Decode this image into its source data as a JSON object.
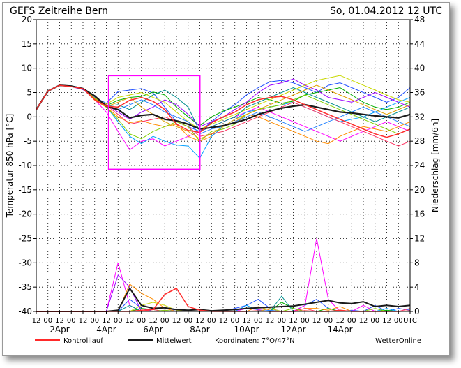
{
  "header": {
    "title": "GEFS  Zeitreihe  Bern",
    "run": "So,  01.04.2012  12  UTC"
  },
  "footer": {
    "control_label": "Kontrolllauf",
    "mean_label": "Mittelwert",
    "coords": "Koordinaten:  7°O/47°N",
    "brand": "WetterOnline"
  },
  "colors": {
    "control": "#ff2a2a",
    "mean": "#1a1a1a",
    "highlight_box": "#ff00ff",
    "members": [
      "#1f4fff",
      "#ff00ff",
      "#00b000",
      "#ff8c00",
      "#9b00ff",
      "#00a0ff",
      "#c8d800",
      "#ff3060",
      "#008f8f",
      "#7fd000",
      "#2080ff",
      "#e0a000",
      "#a000c0",
      "#00c8a0",
      "#ff6000",
      "#4040c0",
      "#90c000",
      "#0070c0",
      "#c06000",
      "#40e040"
    ]
  },
  "chart_data": {
    "type": "line",
    "title": "GEFS Zeitreihe Bern",
    "left_axis": {
      "label": "Temperatur 850 hPa [°C]",
      "ylim": [
        -40,
        20
      ],
      "ticks": [
        20,
        15,
        10,
        5,
        0,
        -5,
        -10,
        -15,
        -20,
        -25,
        -30,
        -35,
        -40
      ]
    },
    "right_axis": {
      "label": "Niederschlag [mm/6h]",
      "ylim": [
        0,
        48
      ],
      "ticks": [
        48,
        44,
        40,
        36,
        32,
        28,
        24,
        20,
        16,
        12,
        8,
        4,
        0
      ]
    },
    "x_axis": {
      "hour_ticks": [
        "12",
        "00",
        "12",
        "00",
        "12",
        "00",
        "12",
        "00",
        "12",
        "00",
        "12",
        "00",
        "12",
        "00",
        "12",
        "00",
        "12",
        "00",
        "12",
        "00",
        "12",
        "00",
        "12",
        "00",
        "12",
        "00",
        "12",
        "00",
        "12",
        "00",
        "12",
        "00",
        "UTC"
      ],
      "date_labels": [
        {
          "label": "2Apr",
          "index": 2
        },
        {
          "label": "4Apr",
          "index": 6
        },
        {
          "label": "6Apr",
          "index": 10
        },
        {
          "label": "8Apr",
          "index": 14
        },
        {
          "label": "10Apr",
          "index": 18
        },
        {
          "label": "12Apr",
          "index": 22
        },
        {
          "label": "14Apr",
          "index": 26
        }
      ]
    },
    "grid": "dotted",
    "highlight_box": {
      "x_from": 6.2,
      "x_to": 14,
      "y_from": -10.8,
      "y_to": 8.5
    },
    "control_temperature": [
      1.5,
      5.3,
      6.5,
      6.2,
      5.8,
      3.5,
      2.2,
      2.0,
      3.4,
      4.0,
      3.2,
      1.5,
      -1.5,
      -2.8,
      -3.2,
      -1.2,
      0.0,
      1.0,
      2.5,
      3.5,
      4.0,
      4.2,
      3.5,
      2.5,
      1.5,
      0.5,
      -0.5,
      -1.5,
      -2.5,
      -3.5,
      -4.2,
      -3.5,
      -2.5
    ],
    "mean_temperature": [
      1.5,
      5.3,
      6.5,
      6.3,
      5.8,
      4.3,
      2.2,
      1.5,
      -0.2,
      0.3,
      0.5,
      -0.5,
      -0.8,
      -1.5,
      -2.5,
      -2.2,
      -1.8,
      -1.2,
      -0.5,
      0.5,
      1.2,
      1.8,
      2.2,
      2.5,
      2.0,
      1.5,
      1.0,
      0.8,
      0.5,
      0.2,
      0.0,
      -0.2,
      0.5
    ],
    "control_precip": [
      0,
      0,
      0,
      0,
      0,
      0,
      0,
      0,
      0,
      0.2,
      0.3,
      2.8,
      3.8,
      0.8,
      0.2,
      0,
      0,
      0,
      0,
      0.1,
      0,
      0,
      0,
      0.1,
      0,
      0,
      0.2,
      0,
      0,
      0,
      0,
      0,
      0.1
    ],
    "mean_precip": [
      0,
      0,
      0,
      0,
      0,
      0,
      0,
      0.2,
      3.8,
      1.0,
      0.5,
      0.6,
      0.3,
      0.2,
      0.3,
      0.1,
      0.2,
      0.3,
      0.5,
      0.6,
      0.7,
      0.8,
      0.9,
      1.2,
      1.5,
      1.8,
      1.4,
      1.3,
      1.6,
      0.8,
      1.0,
      0.8,
      1.0
    ],
    "members": [
      {
        "temperature": [
          1.5,
          5.3,
          6.5,
          6.3,
          5.9,
          4.0,
          2.8,
          5.2,
          5.5,
          5.8,
          4.9,
          2.0,
          -1.0,
          -2.0,
          -3.0,
          -1.0,
          1.0,
          2.5,
          4.5,
          6.0,
          7.2,
          7.5,
          7.0,
          6.0,
          5.0,
          6.5,
          7.0,
          6.0,
          5.0,
          4.0,
          3.0,
          4.0,
          6.0
        ],
        "precip": [
          0,
          0,
          0,
          0,
          0,
          0,
          0,
          0,
          2.0,
          0.5,
          0,
          0,
          0.3,
          0,
          0,
          0,
          0,
          0.5,
          1.0,
          2.0,
          0.5,
          0,
          0,
          1.0,
          2.0,
          0.5,
          0,
          0.2,
          0,
          1.0,
          0,
          0.5,
          0.2
        ]
      },
      {
        "temperature": [
          1.5,
          5.3,
          6.5,
          6.3,
          5.7,
          3.5,
          1.0,
          -3.0,
          -6.8,
          -5.0,
          -4.5,
          -6.0,
          -5.0,
          -4.0,
          -3.0,
          -2.0,
          -1.0,
          0.0,
          1.0,
          2.0,
          1.0,
          0.0,
          -1.0,
          -2.0,
          -3.0,
          -4.0,
          -5.0,
          -4.0,
          -3.0,
          -2.0,
          -1.0,
          -2.0,
          -3.0
        ],
        "precip": [
          0,
          0,
          0,
          0,
          0,
          0,
          0,
          8.0,
          1.0,
          0,
          0,
          0,
          0,
          0,
          0,
          0,
          0,
          0,
          0.5,
          0.3,
          0,
          0,
          0,
          1.0,
          12.0,
          2.0,
          0,
          0,
          1.0,
          0,
          0,
          0,
          0
        ]
      },
      {
        "temperature": [
          1.5,
          5.3,
          6.5,
          6.4,
          5.8,
          3.7,
          2.3,
          3.4,
          4.0,
          4.2,
          5.1,
          4.5,
          2.0,
          0.0,
          -1.8,
          0.0,
          1.2,
          2.0,
          2.9,
          4.0,
          3.5,
          2.8,
          3.2,
          4.5,
          5.0,
          5.5,
          6.0,
          4.5,
          3.0,
          2.0,
          1.5,
          2.0,
          3.0
        ],
        "precip": [
          0,
          0,
          0,
          0,
          0,
          0,
          0,
          0,
          0,
          0.5,
          0.3,
          0,
          0,
          0,
          0,
          0,
          0,
          0,
          0,
          0,
          0,
          1.5,
          0.5,
          0,
          0,
          0.5,
          0,
          0,
          0,
          0,
          0.2,
          0,
          0
        ]
      },
      {
        "temperature": [
          1.5,
          5.3,
          6.5,
          6.3,
          5.9,
          3.4,
          2.0,
          0.0,
          -1.2,
          -0.8,
          -1.5,
          -2.0,
          -1.5,
          -4.0,
          -5.0,
          -4.0,
          -2.0,
          -1.0,
          0.5,
          0.0,
          -1.0,
          -2.0,
          -3.0,
          -4.0,
          -5.0,
          -5.5,
          -4.0,
          -3.0,
          -2.0,
          -2.5,
          -3.0,
          -2.0,
          -1.0
        ],
        "precip": [
          0,
          0,
          0,
          0,
          0,
          0,
          0,
          0,
          4.5,
          3.0,
          2.0,
          0.5,
          0,
          0,
          0,
          0,
          0,
          0,
          0,
          0.8,
          0.2,
          0,
          0,
          0.5,
          0.5,
          0.2,
          0.8,
          0,
          0,
          0,
          0,
          0,
          0
        ]
      },
      {
        "temperature": [
          1.5,
          5.3,
          6.5,
          6.2,
          5.6,
          3.8,
          2.5,
          1.0,
          -0.5,
          1.0,
          2.0,
          3.5,
          2.5,
          0.5,
          -2.0,
          -1.0,
          0.0,
          1.5,
          3.0,
          5.0,
          6.5,
          7.0,
          7.8,
          6.5,
          5.5,
          4.0,
          3.5,
          3.0,
          4.0,
          5.0,
          4.0,
          3.0,
          2.0
        ],
        "precip": [
          0,
          0,
          0,
          0,
          0,
          0,
          0,
          6.0,
          4.0,
          0,
          0,
          0.2,
          0,
          0,
          0,
          0,
          0,
          0,
          0,
          0,
          0.5,
          0,
          0,
          0,
          0,
          0,
          0.2,
          0,
          0,
          0,
          0,
          0,
          0
        ]
      },
      {
        "temperature": [
          1.5,
          5.3,
          6.5,
          6.3,
          5.8,
          3.6,
          2.1,
          -1.0,
          -4.0,
          -5.5,
          -4.0,
          -5.0,
          -5.8,
          -6.0,
          -8.5,
          -4.0,
          -2.0,
          -0.5,
          1.0,
          1.5,
          2.0,
          2.5,
          3.0,
          2.0,
          1.0,
          0.0,
          -1.0,
          -0.5,
          0.0,
          1.0,
          2.0,
          3.0,
          4.0
        ],
        "precip": [
          0,
          0,
          0,
          0,
          0,
          0,
          0,
          0,
          0,
          0,
          0,
          0,
          0,
          0,
          0,
          0,
          0,
          0,
          1.0,
          0.2,
          0,
          0,
          0,
          0,
          0,
          0,
          0,
          0,
          0,
          0,
          0.5,
          0,
          0
        ]
      },
      {
        "temperature": [
          1.5,
          5.3,
          6.5,
          6.4,
          5.9,
          3.9,
          2.6,
          4.0,
          4.5,
          5.0,
          4.0,
          3.0,
          1.0,
          -1.0,
          -2.5,
          -1.5,
          -0.5,
          0.5,
          1.5,
          2.5,
          3.5,
          4.5,
          5.5,
          6.5,
          7.5,
          8.0,
          8.5,
          7.5,
          6.5,
          5.5,
          4.5,
          3.5,
          3.0
        ],
        "precip": [
          0,
          0,
          0,
          0,
          0,
          0,
          0,
          0,
          0,
          1.0,
          1.5,
          1.0,
          0.2,
          0,
          0,
          0,
          0,
          0,
          0,
          0,
          0.5,
          0,
          0,
          0,
          0,
          0,
          0,
          0,
          0,
          0,
          0,
          0,
          0
        ]
      },
      {
        "temperature": [
          1.5,
          5.3,
          6.5,
          6.3,
          5.8,
          3.7,
          2.4,
          0.5,
          -1.5,
          -1.0,
          -0.5,
          0.0,
          -1.0,
          -2.0,
          -4.0,
          -3.5,
          -3.0,
          -2.0,
          -1.0,
          0.0,
          1.0,
          2.0,
          3.0,
          2.0,
          1.0,
          0.0,
          -1.0,
          -2.0,
          -3.0,
          -4.0,
          -5.0,
          -6.0,
          -5.0
        ],
        "precip": [
          0,
          0,
          0,
          0,
          0,
          0,
          0,
          0,
          0,
          0,
          0.3,
          0,
          0,
          0,
          0,
          0,
          0,
          0,
          0,
          0,
          0,
          0,
          0,
          0.5,
          0,
          0,
          0,
          0,
          0,
          0,
          0,
          0,
          0.5
        ]
      },
      {
        "temperature": [
          1.5,
          5.3,
          6.5,
          6.2,
          5.7,
          3.5,
          2.2,
          2.5,
          1.5,
          3.0,
          4.5,
          5.5,
          4.0,
          2.0,
          -3.0,
          -2.0,
          -1.0,
          0.0,
          2.0,
          3.0,
          4.0,
          5.0,
          6.0,
          5.0,
          4.0,
          3.0,
          2.0,
          1.0,
          0.0,
          -1.0,
          0.0,
          1.0,
          2.0
        ],
        "precip": [
          0,
          0,
          0,
          0,
          0,
          0,
          0,
          0,
          1.0,
          0,
          0,
          0,
          0,
          0,
          0,
          0,
          0,
          0,
          0,
          0,
          0,
          2.5,
          0,
          0,
          0,
          0,
          0,
          0,
          0,
          0,
          0,
          0,
          0
        ]
      },
      {
        "temperature": [
          1.5,
          5.3,
          6.5,
          6.3,
          5.8,
          3.8,
          2.0,
          -0.5,
          -3.5,
          -4.5,
          -3.0,
          -2.0,
          -1.0,
          -2.0,
          -5.0,
          -3.0,
          -2.5,
          -1.5,
          0.5,
          1.5,
          2.0,
          2.5,
          3.5,
          4.5,
          3.5,
          2.5,
          1.5,
          0.5,
          -0.5,
          -1.5,
          -2.5,
          -3.5,
          -2.5
        ],
        "precip": [
          0,
          0,
          0,
          0,
          0,
          0,
          0,
          0,
          0,
          0,
          0,
          0.2,
          0,
          0,
          0,
          0,
          0,
          0,
          0,
          0,
          0,
          0,
          0.5,
          0,
          0,
          0,
          0,
          0,
          0,
          0.5,
          0,
          0,
          0
        ]
      },
      {
        "temperature": [
          1.5,
          5.3,
          6.5,
          6.4,
          5.9,
          3.6,
          2.3,
          1.5,
          2.5,
          3.5,
          2.5,
          1.0,
          0.0,
          -1.0,
          -3.5,
          -2.5,
          -2.0,
          -1.0,
          0.0,
          1.0,
          0.0,
          -1.0,
          -2.0,
          -3.0,
          -2.0,
          -1.0,
          0.0,
          1.0,
          2.0,
          1.0,
          0.0,
          -1.0,
          -2.0
        ],
        "precip": [
          0,
          0,
          0,
          0,
          0,
          0,
          0,
          0,
          0,
          0,
          0,
          0,
          0,
          0,
          0,
          0,
          0,
          0,
          0,
          0,
          0.2,
          0,
          0,
          0,
          0,
          0,
          0,
          0,
          0,
          0,
          0,
          0,
          0
        ]
      },
      {
        "temperature": [
          1.5,
          5.3,
          6.5,
          6.3,
          5.8,
          3.7,
          2.1,
          3.0,
          4.0,
          2.0,
          0.5,
          -1.0,
          -2.0,
          -3.0,
          -4.5,
          -3.5,
          -2.0,
          -0.5,
          0.5,
          1.5,
          2.5,
          3.5,
          4.5,
          5.5,
          6.5,
          5.5,
          4.5,
          3.5,
          2.5,
          1.5,
          0.5,
          1.5,
          2.5
        ],
        "precip": [
          0,
          0,
          0,
          0,
          0,
          0,
          0,
          0,
          0,
          0,
          0,
          0,
          0,
          0,
          0,
          0,
          0,
          0,
          0,
          0,
          0,
          0,
          0,
          0,
          0,
          0,
          0,
          0,
          0,
          0,
          0,
          0,
          0
        ]
      }
    ]
  }
}
